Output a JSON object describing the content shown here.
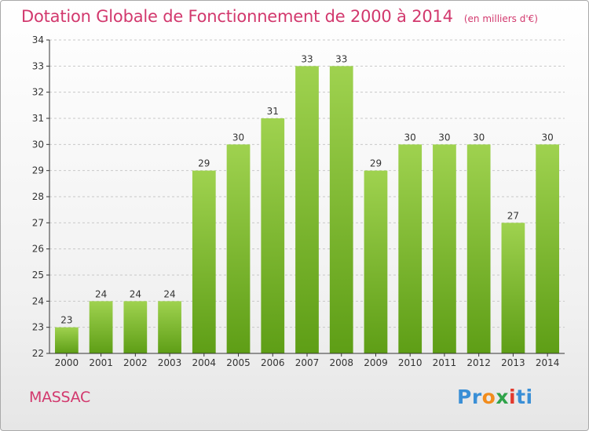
{
  "title": "Dotation Globale de Fonctionnement de 2000 à 2014",
  "unit_label": "(en milliers d'€)",
  "commune": "MASSAC",
  "logo": {
    "letters": [
      "P",
      "r",
      "o",
      "x",
      "i",
      "t",
      "i"
    ],
    "colors": [
      "#3a8fd6",
      "#3a8fd6",
      "#f28c1c",
      "#2fa34a",
      "#e23a2e",
      "#3a8fd6",
      "#3a8fd6"
    ]
  },
  "colors": {
    "title": "#d2386d",
    "bar_light": "#9fd24f",
    "bar_dark": "#5e9e16",
    "axis": "#333333",
    "grid": "#c8c8c8"
  },
  "chart_data": {
    "type": "bar",
    "categories": [
      "2000",
      "2001",
      "2002",
      "2003",
      "2004",
      "2005",
      "2006",
      "2007",
      "2008",
      "2009",
      "2010",
      "2011",
      "2012",
      "2013",
      "2014"
    ],
    "values": [
      23,
      24,
      24,
      24,
      29,
      30,
      31,
      33,
      33,
      29,
      30,
      30,
      30,
      27,
      30
    ],
    "ylim": [
      22,
      34
    ],
    "yticks": [
      22,
      23,
      24,
      25,
      26,
      27,
      28,
      29,
      30,
      31,
      32,
      33,
      34
    ],
    "grid": true,
    "data_labels": true
  }
}
